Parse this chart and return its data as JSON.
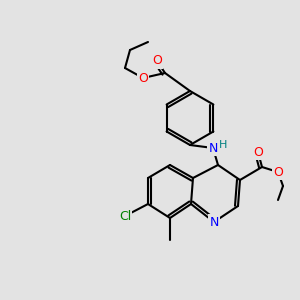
{
  "bg_color": "#e3e3e3",
  "bond_color": "#000000",
  "bond_width": 1.5,
  "atom_colors": {
    "O": "#ff0000",
    "N": "#0000ff",
    "Cl": "#008000",
    "C": "#000000",
    "H": "#008080"
  },
  "font_size": 9,
  "font_size_small": 8
}
